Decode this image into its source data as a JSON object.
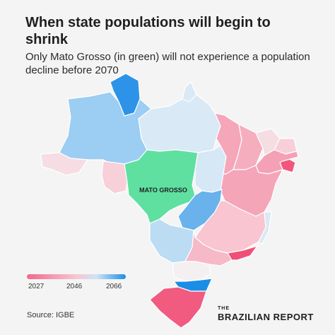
{
  "header": {
    "title": "When state populations will begin to shrink",
    "subtitle": "Only Mato Grosso (in green) will not experience a population decline before 2070"
  },
  "map": {
    "highlight_label": "MATO GROSSO",
    "highlight_color": "#5fe0a0",
    "state_fills": {
      "roraima": "#2d93e8",
      "amazonas": "#9ccdf2",
      "para": "#d9e9f6",
      "amapa": "#d9e9f6",
      "acre": "#f6dde3",
      "rondonia": "#f7d0da",
      "tocantins": "#d6e8f6",
      "maranhao": "#f5a6b9",
      "piaui": "#f5aebe",
      "ceara": "#f4dde3",
      "rio_grande_do_norte": "#f8cfd9",
      "pernambuco": "#f4a0b5",
      "paraiba_coast": "#f1577c",
      "bahia": "#f4a5b8",
      "goias": "#69b2ec",
      "mato_grosso_do_sul": "#bcdcf4",
      "minas_gerais": "#f8c5d1",
      "espirito_santo": "#d9e9f6",
      "sao_paulo": "#f5b9c7",
      "rio_de_janeiro": "#ef5077",
      "parana": "#f4f0f2",
      "santa_catarina": "#1a8ee6",
      "rio_grande_do_sul": "#f15b80"
    }
  },
  "legend": {
    "gradient_colors": [
      "#f2688c",
      "#f7c6d2",
      "#cfe4f5",
      "#1e8fe6"
    ],
    "labels": [
      "2027",
      "2046",
      "2066"
    ]
  },
  "footer": {
    "source": "Source: IGBE",
    "brand_small": "THE",
    "brand_name": "BRAZILIAN REPORT"
  }
}
